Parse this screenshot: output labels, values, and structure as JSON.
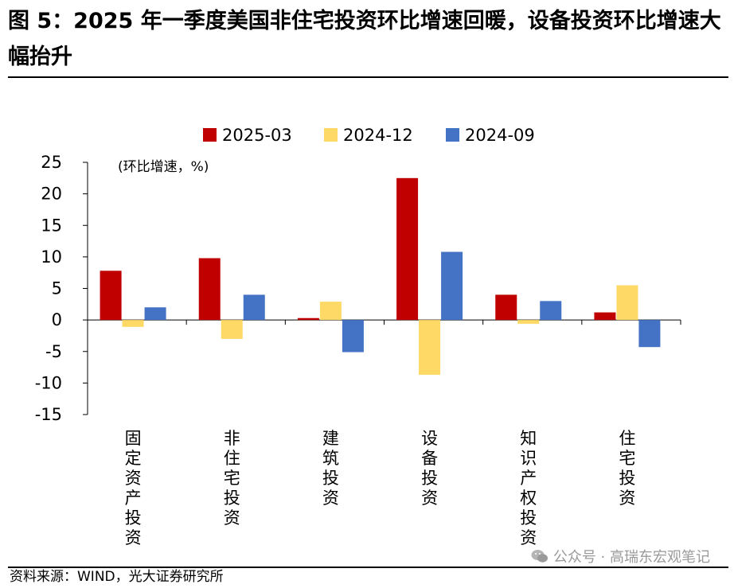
{
  "title": "图 5：2025 年一季度美国非住宅投资环比增速回暖，设备投资环比增速大幅抬升",
  "source": "资料来源：WIND，光大证券研究所",
  "watermark": "公众号 · 高瑞东宏观笔记",
  "watermark_icon": "wechat-icon",
  "chart_data": {
    "type": "bar",
    "unit_label": "(环比增速，%)",
    "categories": [
      "固定资产投资",
      "非住宅投资",
      "建筑投资",
      "设备投资",
      "知识产权投资",
      "住宅投资"
    ],
    "series": [
      {
        "name": "2025-03",
        "color": "#c00000",
        "values": [
          7.8,
          9.8,
          0.3,
          22.5,
          4.0,
          1.2
        ]
      },
      {
        "name": "2024-12",
        "color": "#ffd966",
        "values": [
          -1.1,
          -3.0,
          2.9,
          -8.7,
          -0.6,
          5.5
        ]
      },
      {
        "name": "2024-09",
        "color": "#4472c4",
        "values": [
          2.0,
          4.0,
          -5.1,
          10.8,
          3.0,
          -4.3
        ]
      }
    ],
    "ylim": [
      -15,
      25
    ],
    "yticks": [
      25,
      20,
      15,
      10,
      5,
      0,
      -5,
      -10,
      -15
    ],
    "legend_position": "top-center",
    "grid": false
  }
}
